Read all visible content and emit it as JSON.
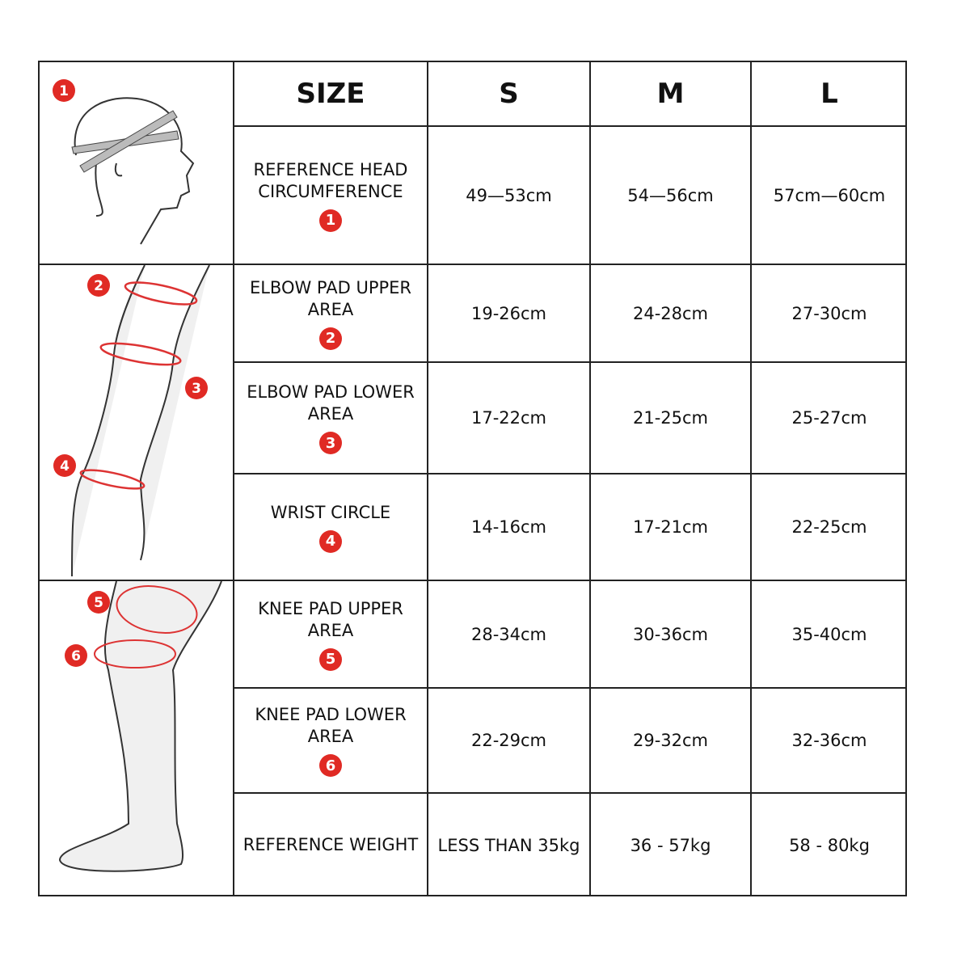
{
  "header": {
    "size": "SIZE",
    "s": "S",
    "m": "M",
    "l": "L"
  },
  "rows": [
    {
      "label": "REFERENCE HEAD CIRCUMFERENCE",
      "badge": "1",
      "s": "49—53cm",
      "m": "54—56cm",
      "l": "57cm—60cm"
    },
    {
      "label": "ELBOW PAD UPPER AREA",
      "badge": "2",
      "s": "19-26cm",
      "m": "24-28cm",
      "l": "27-30cm"
    },
    {
      "label": "ELBOW PAD LOWER AREA",
      "badge": "3",
      "s": "17-22cm",
      "m": "21-25cm",
      "l": "25-27cm"
    },
    {
      "label": "WRIST CIRCLE",
      "badge": "4",
      "s": "14-16cm",
      "m": "17-21cm",
      "l": "22-25cm"
    },
    {
      "label": "KNEE PAD UPPER AREA",
      "badge": "5",
      "s": "28-34cm",
      "m": "30-36cm",
      "l": "35-40cm"
    },
    {
      "label": "KNEE PAD LOWER AREA",
      "badge": "6",
      "s": "22-29cm",
      "m": "29-32cm",
      "l": "32-36cm"
    },
    {
      "label": "REFERENCE WEIGHT",
      "s": "LESS THAN 35kg",
      "m": "36 - 57kg",
      "l": "58 - 80kg"
    }
  ],
  "illustrations": {
    "head_badges": [
      "1"
    ],
    "arm_badges": [
      "2",
      "3",
      "4"
    ],
    "leg_badges": [
      "5",
      "6"
    ]
  },
  "colors": {
    "badge": "#e02a24",
    "border": "#222222"
  }
}
